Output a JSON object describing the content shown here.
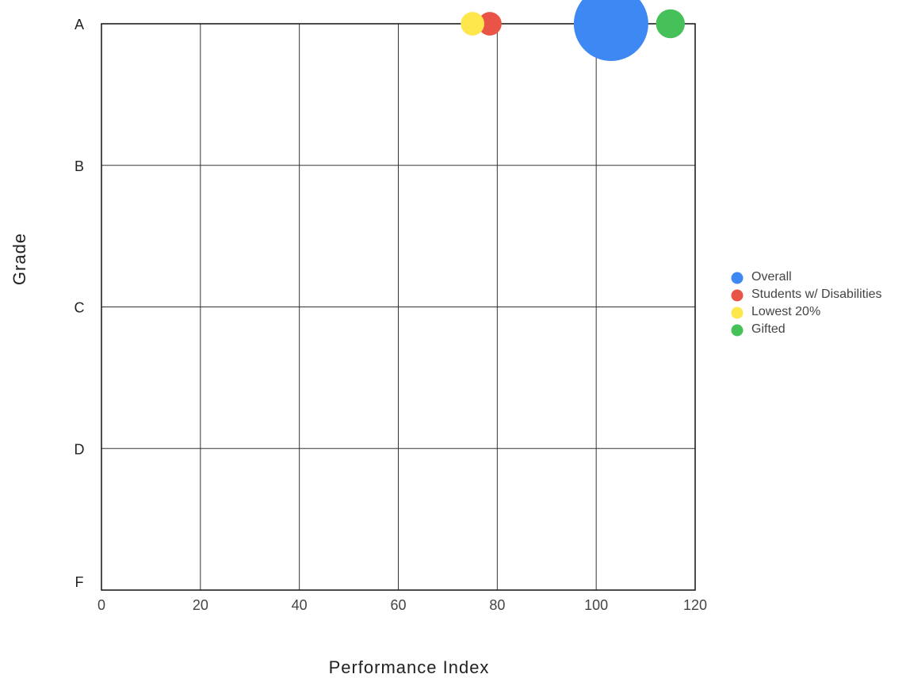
{
  "chart_data": {
    "type": "scatter",
    "variant": "bubble",
    "title": "",
    "xlabel": "Performance Index",
    "ylabel": "Grade",
    "xlim": [
      0,
      120
    ],
    "x_ticks": [
      0,
      20,
      40,
      60,
      80,
      100,
      120
    ],
    "y_categories": [
      "A",
      "B",
      "C",
      "D",
      "F"
    ],
    "grid": true,
    "legend_position": "right",
    "series": [
      {
        "name": "Overall",
        "color": "#3d88f2",
        "points": [
          {
            "x": 103,
            "y": "A",
            "size": 100
          }
        ]
      },
      {
        "name": "Students w/ Disabilities",
        "color": "#ea5446",
        "points": [
          {
            "x": 78.5,
            "y": "A",
            "size": 10
          }
        ]
      },
      {
        "name": "Lowest 20%",
        "color": "#fde74c",
        "points": [
          {
            "x": 75,
            "y": "A",
            "size": 10
          }
        ]
      },
      {
        "name": "Gifted",
        "color": "#46c15a",
        "points": [
          {
            "x": 115,
            "y": "A",
            "size": 15
          }
        ]
      }
    ]
  }
}
